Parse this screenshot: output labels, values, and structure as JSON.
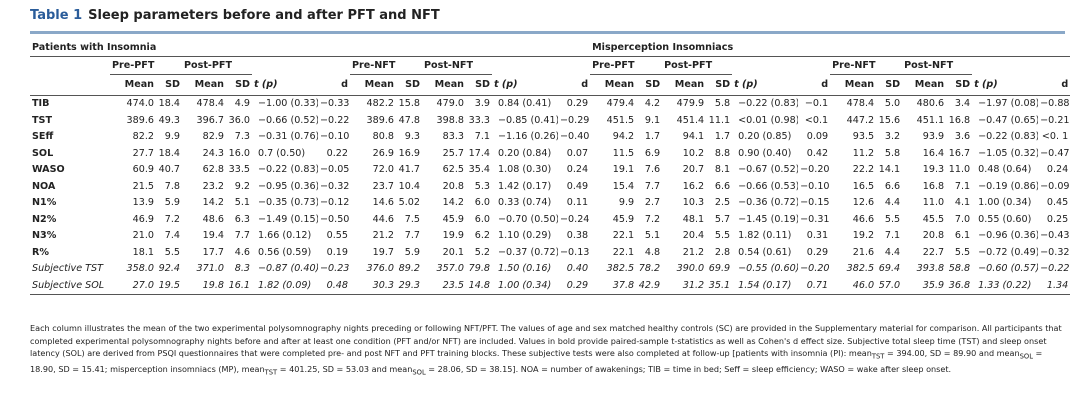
{
  "header": {
    "label": "Table 1",
    "title": "Sleep parameters before and after PFT and NFT"
  },
  "table": {
    "groups": [
      "Patients with Insomnia",
      "Misperception Insomniacs"
    ],
    "subheaders": [
      "Pre-PFT",
      "Post-PFT",
      "Pre-NFT",
      "Post-NFT",
      "Pre-PFT",
      "Post-PFT",
      "Pre-NFT",
      "Post-NFT"
    ],
    "columns": [
      "Mean",
      "SD",
      "Mean",
      "SD",
      "t (p)",
      "d",
      "Mean",
      "SD",
      "Mean",
      "SD",
      "t (p)",
      "d",
      "Mean",
      "SD",
      "Mean",
      "SD",
      "t (p)",
      "d",
      "Mean",
      "SD",
      "Mean",
      "SD",
      "t (p)",
      "d"
    ],
    "rows": [
      {
        "label": "TIB",
        "cells": [
          "474.0",
          "18.4",
          "478.4",
          "4.9",
          "−1.00 (0.33)",
          "−0.33",
          "482.2",
          "15.8",
          "479.0",
          "3.9",
          "0.84 (0.41)",
          "0.29",
          "479.4",
          "4.2",
          "479.9",
          "5.8",
          "−0.22 (0.83)",
          "−0.1",
          "478.4",
          "5.0",
          "480.6",
          "3.4",
          "−1.97 (0.08)",
          "−0.88"
        ]
      },
      {
        "label": "TST",
        "cells": [
          "389.6",
          "49.3",
          "396.7",
          "36.0",
          "−0.66 (0.52)",
          "−0.22",
          "389.6",
          "47.8",
          "398.8",
          "33.3",
          "−0.85 (0.41)",
          "−0.29",
          "451.5",
          "9.1",
          "451.4",
          "11.1",
          "<0.01 (0.98)",
          "<0.1",
          "447.2",
          "15.6",
          "451.1",
          "16.8",
          "−0.47 (0.65)",
          "−0.21"
        ]
      },
      {
        "label": "SEff",
        "cells": [
          "82.2",
          "9.9",
          "82.9",
          "7.3",
          "−0.31 (0.76)",
          "−0.10",
          "80.8",
          "9.3",
          "83.3",
          "7.1",
          "−1.16 (0.26)",
          "−0.40",
          "94.2",
          "1.7",
          "94.1",
          "1.7",
          "0.20 (0.85)",
          "0.09",
          "93.5",
          "3.2",
          "93.9",
          "3.6",
          "−0.22 (0.83)",
          "<0. 1"
        ]
      },
      {
        "label": "SOL",
        "cells": [
          "27.7",
          "18.4",
          "24.3",
          "16.0",
          "0.7 (0.50)",
          "0.22",
          "26.9",
          "16.9",
          "25.7",
          "17.4",
          "0.20 (0.84)",
          "0.07",
          "11.5",
          "6.9",
          "10.2",
          "8.8",
          "0.90 (0.40)",
          "0.42",
          "11.2",
          "5.8",
          "16.4",
          "16.7",
          "−1.05 (0.32)",
          "−0.47"
        ]
      },
      {
        "label": "WASO",
        "cells": [
          "60.9",
          "40.7",
          "62.8",
          "33.5",
          "−0.22 (0.83)",
          "−0.05",
          "72.0",
          "41.7",
          "62.5",
          "35.4",
          "1.08 (0.30)",
          "0.24",
          "19.1",
          "7.6",
          "20.7",
          "8.1",
          "−0.67 (0.52)",
          "−0.20",
          "22.2",
          "14.1",
          "19.3",
          "11.0",
          "0.48 (0.64)",
          "0.24"
        ]
      },
      {
        "label": "NOA",
        "cells": [
          "21.5",
          "7.8",
          "23.2",
          "9.2",
          "−0.95 (0.36)",
          "−0.32",
          "23.7",
          "10.4",
          "20.8",
          "5.3",
          "1.42 (0.17)",
          "0.49",
          "15.4",
          "7.7",
          "16.2",
          "6.6",
          "−0.66 (0.53)",
          "−0.10",
          "16.5",
          "6.6",
          "16.8",
          "7.1",
          "−0.19 (0.86)",
          "−0.09"
        ]
      },
      {
        "label": "N1%",
        "cells": [
          "13.9",
          "5.9",
          "14.2",
          "5.1",
          "−0.35 (0.73)",
          "−0.12",
          "14.6",
          "5.02",
          "14.2",
          "6.0",
          "0.33 (0.74)",
          "0.11",
          "9.9",
          "2.7",
          "10.3",
          "2.5",
          "−0.36 (0.72)",
          "−0.15",
          "12.6",
          "4.4",
          "11.0",
          "4.1",
          "1.00 (0.34)",
          "0.45"
        ]
      },
      {
        "label": "N2%",
        "cells": [
          "46.9",
          "7.2",
          "48.6",
          "6.3",
          "−1.49 (0.15)",
          "−0.50",
          "44.6",
          "7.5",
          "45.9",
          "6.0",
          "−0.70 (0.50)",
          "−0.24",
          "45.9",
          "7.2",
          "48.1",
          "5.7",
          "−1.45 (0.19)",
          "−0.31",
          "46.6",
          "5.5",
          "45.5",
          "7.0",
          "0.55 (0.60)",
          "0.25"
        ]
      },
      {
        "label": "N3%",
        "cells": [
          "21.0",
          "7.4",
          "19.4",
          "7.7",
          "1.66 (0.12)",
          "0.55",
          "21.2",
          "7.7",
          "19.9",
          "6.2",
          "1.10 (0.29)",
          "0.38",
          "22.1",
          "5.1",
          "20.4",
          "5.5",
          "1.82 (0.11)",
          "0.31",
          "19.2",
          "7.1",
          "20.8",
          "6.1",
          "−0.96 (0.36)",
          "−0.43"
        ]
      },
      {
        "label": "R%",
        "cells": [
          "18.1",
          "5.5",
          "17.7",
          "4.6",
          "0.56 (0.59)",
          "0.19",
          "19.7",
          "5.9",
          "20.1",
          "5.2",
          "−0.37 (0.72)",
          "−0.13",
          "22.1",
          "4.8",
          "21.2",
          "2.8",
          "0.54 (0.61)",
          "0.29",
          "21.6",
          "4.4",
          "22.7",
          "5.5",
          "−0.72 (0.49)",
          "−0.32"
        ]
      },
      {
        "label": "Subjective TST",
        "italic": true,
        "cells": [
          "358.0",
          "92.4",
          "371.0",
          "8.3",
          "−0.87 (0.40)",
          "−0.23",
          "376.0",
          "89.2",
          "357.0",
          "79.8",
          "1.50 (0.16)",
          "0.40",
          "382.5",
          "78.2",
          "390.0",
          "69.9",
          "−0.55 (0.60)",
          "−0.20",
          "382.5",
          "69.4",
          "393.8",
          "58.8",
          "−0.60 (0.57)",
          "−0.22"
        ]
      },
      {
        "label": "Subjective SOL",
        "italic": true,
        "cells": [
          "27.0",
          "19.5",
          "19.8",
          "16.1",
          "1.82 (0.09)",
          "0.48",
          "30.3",
          "29.3",
          "23.5",
          "14.8",
          "1.00 (0.34)",
          "0.29",
          "37.8",
          "42.9",
          "31.2",
          "35.1",
          "1.54 (0.17)",
          "0.71",
          "46.0",
          "57.0",
          "35.9",
          "36.8",
          "1.33 (0.22)",
          "1.34"
        ]
      }
    ]
  },
  "footnote": [
    "Each column illustrates the mean of the two experimental polysomnography nights preceding or following NFT/PFT. The values of age and sex matched healthy controls (SC) are provided in the Supplementary material for comparison. All participants that completed experimental polysomnography nights before and after at least one condition (PFT and/or NFT) are included. Values in bold provide paired-sample t-statistics as well as Cohen's d effect size. Subjective total sleep time (TST) and sleep onset latency (SOL) are derived from PSQI questionnaires that were completed pre- and post NFT and PFT training blocks. These subjective tests were also completed at follow-up [patients with insomnia (PI): mean",
    "TST",
    " = 394.00, SD = 89.90 and mean",
    "SOL",
    " = 18.90, SD = 15.41; misperception insomniacs (MP), mean",
    "TST",
    " = 401.25, SD = 53.03 and mean",
    "SOL",
    " = 28.06, SD = 38.15]. NOA = number of awakenings; TIB = time in bed; Seff = sleep efficiency; WASO = wake after sleep onset."
  ]
}
